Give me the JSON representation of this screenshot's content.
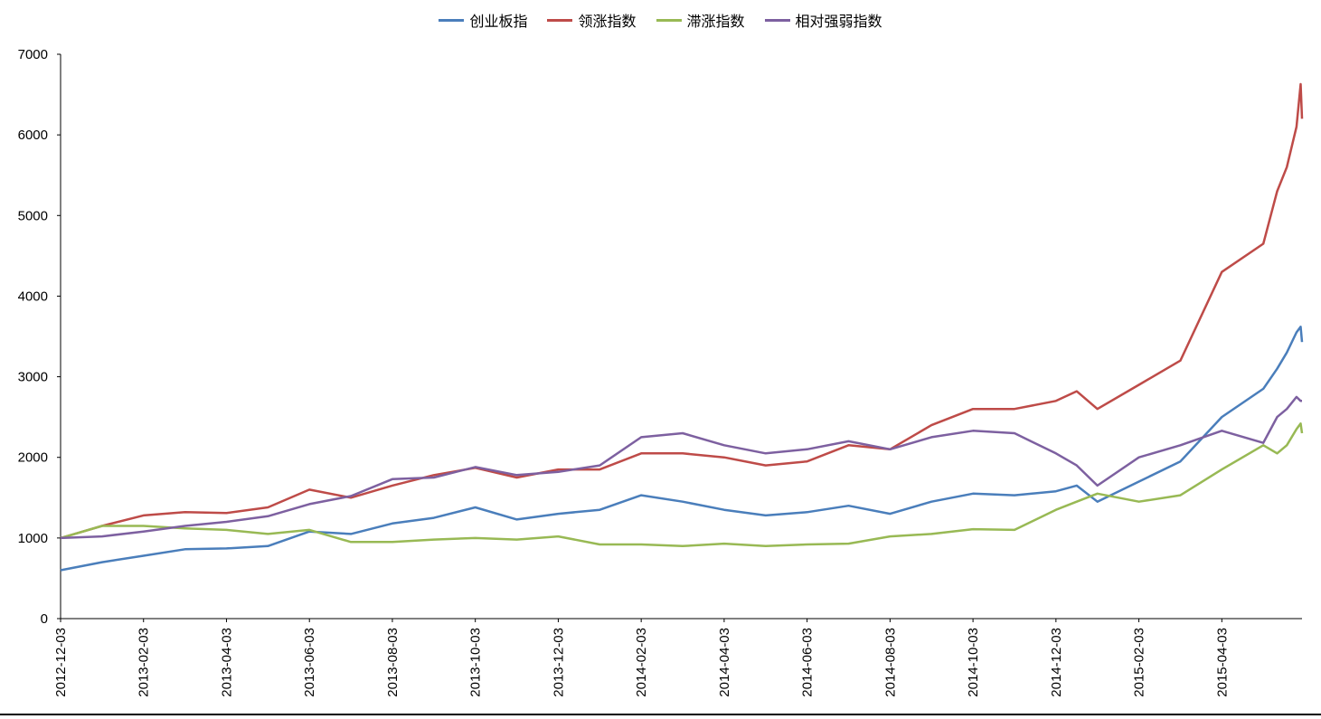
{
  "chart_data": {
    "type": "line",
    "title": "",
    "xlabel": "",
    "ylabel": "",
    "ylim": [
      0,
      7000
    ],
    "yticks": [
      0,
      1000,
      2000,
      3000,
      4000,
      5000,
      6000,
      7000
    ],
    "xticks": [
      "2012-12-03",
      "2013-02-03",
      "2013-04-03",
      "2013-06-03",
      "2013-08-03",
      "2013-10-03",
      "2013-12-03",
      "2014-02-03",
      "2014-04-03",
      "2014-06-03",
      "2014-08-03",
      "2014-10-03",
      "2014-12-03",
      "2015-02-03",
      "2015-04-03"
    ],
    "xlim": [
      "2012-12-03",
      "2015-06-01"
    ],
    "grid": false,
    "legend_position": "top",
    "x": [
      "2012-12-03",
      "2013-01-03",
      "2013-02-03",
      "2013-03-03",
      "2013-04-03",
      "2013-05-03",
      "2013-06-03",
      "2013-07-03",
      "2013-08-03",
      "2013-09-03",
      "2013-10-03",
      "2013-11-03",
      "2013-12-03",
      "2014-01-03",
      "2014-02-03",
      "2014-03-03",
      "2014-04-03",
      "2014-05-03",
      "2014-06-03",
      "2014-07-03",
      "2014-08-03",
      "2014-09-03",
      "2014-10-03",
      "2014-11-03",
      "2014-12-03",
      "2014-12-18",
      "2015-01-03",
      "2015-02-03",
      "2015-03-03",
      "2015-04-03",
      "2015-05-03",
      "2015-05-13",
      "2015-05-20",
      "2015-05-27",
      "2015-05-30",
      "2015-06-01"
    ],
    "series": [
      {
        "name": "创业板指",
        "color": "#4a7ebb",
        "values": [
          600,
          700,
          780,
          860,
          870,
          900,
          1080,
          1050,
          1180,
          1250,
          1380,
          1230,
          1300,
          1350,
          1530,
          1450,
          1350,
          1280,
          1320,
          1400,
          1300,
          1450,
          1550,
          1530,
          1580,
          1650,
          1450,
          1700,
          1950,
          2500,
          2850,
          3100,
          3300,
          3550,
          3620,
          3430
        ]
      },
      {
        "name": "领涨指数",
        "color": "#be4b48",
        "values": [
          1000,
          1150,
          1280,
          1320,
          1310,
          1380,
          1600,
          1500,
          1650,
          1780,
          1870,
          1750,
          1850,
          1850,
          2050,
          2050,
          2000,
          1900,
          1950,
          2150,
          2100,
          2400,
          2600,
          2600,
          2700,
          2820,
          2600,
          2900,
          3200,
          4300,
          4650,
          5300,
          5600,
          6100,
          6630,
          6200
        ]
      },
      {
        "name": "滞涨指数",
        "color": "#98b954",
        "values": [
          1000,
          1150,
          1150,
          1120,
          1100,
          1050,
          1100,
          950,
          950,
          980,
          1000,
          980,
          1020,
          920,
          920,
          900,
          930,
          900,
          920,
          930,
          1020,
          1050,
          1110,
          1100,
          1350,
          1450,
          1550,
          1450,
          1530,
          1850,
          2150,
          2050,
          2150,
          2350,
          2420,
          2300
        ]
      },
      {
        "name": "相对强弱指数",
        "color": "#7d60a0",
        "values": [
          1000,
          1020,
          1080,
          1150,
          1200,
          1270,
          1420,
          1520,
          1730,
          1750,
          1880,
          1780,
          1820,
          1900,
          2250,
          2300,
          2150,
          2050,
          2100,
          2200,
          2100,
          2250,
          2330,
          2300,
          2050,
          1900,
          1650,
          2000,
          2150,
          2330,
          2180,
          2500,
          2600,
          2750,
          2700,
          2700
        ]
      }
    ]
  }
}
